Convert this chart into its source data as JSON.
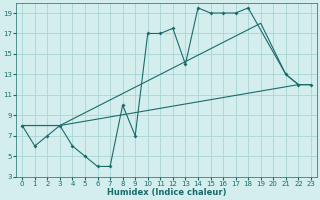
{
  "title": "",
  "xlabel": "Humidex (Indice chaleur)",
  "bg_color": "#d4eeee",
  "grid_color": "#a8d4d4",
  "line_color": "#1a6b6b",
  "xlim": [
    -0.5,
    23.5
  ],
  "ylim": [
    3,
    20
  ],
  "xticks": [
    0,
    1,
    2,
    3,
    4,
    5,
    6,
    7,
    8,
    9,
    10,
    11,
    12,
    13,
    14,
    15,
    16,
    17,
    18,
    19,
    20,
    21,
    22,
    23
  ],
  "yticks": [
    3,
    5,
    7,
    9,
    11,
    13,
    15,
    17,
    19
  ],
  "line1_x": [
    0,
    1,
    2,
    3,
    4,
    5,
    6,
    7,
    8,
    9,
    10,
    11,
    12,
    13,
    14,
    15,
    16,
    17,
    18,
    21,
    22,
    23
  ],
  "line1_y": [
    8,
    6,
    7,
    8,
    6,
    5,
    4,
    4,
    10,
    7,
    17,
    17,
    17.5,
    14,
    19.5,
    19,
    19,
    19,
    19.5,
    13,
    12,
    12
  ],
  "line2_x": [
    0,
    3,
    19,
    21,
    22,
    23
  ],
  "line2_y": [
    8,
    8,
    18,
    13,
    12,
    12
  ],
  "line3_x": [
    0,
    3,
    22,
    23
  ],
  "line3_y": [
    8,
    8,
    12,
    12
  ]
}
